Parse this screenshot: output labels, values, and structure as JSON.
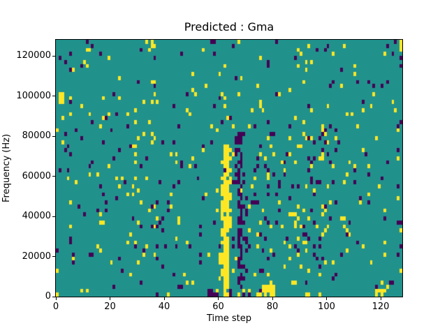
{
  "figure": {
    "background_color": "#ffffff"
  },
  "chart_data": {
    "type": "heatmap",
    "title": "Predicted : Gma",
    "xlabel": "Time step",
    "ylabel": "Frequency (Hz)",
    "x_range": [
      0,
      128
    ],
    "y_range": [
      0,
      128000
    ],
    "x_ticks": [
      0,
      20,
      40,
      60,
      80,
      100,
      120
    ],
    "y_ticks": [
      0,
      20000,
      40000,
      60000,
      80000,
      100000,
      120000
    ],
    "grid": {
      "cols": 128,
      "rows": 64
    },
    "legend": "none",
    "colormap": {
      "name": "viridis-3-level",
      "low": "#440154",
      "mid": "#21918c",
      "high": "#fde725"
    },
    "background_value": "mid",
    "noise": {
      "seed": 7,
      "p_high": 0.028,
      "p_low": 0.026
    },
    "features": [
      {
        "label": "yellow-event-stripe-core",
        "color": "high",
        "cols": [
          62,
          63
        ],
        "rows": [
          2,
          37
        ],
        "density": 0.88
      },
      {
        "label": "yellow-event-stripe-left",
        "color": "high",
        "cols": [
          61,
          61
        ],
        "rows": [
          4,
          33
        ],
        "density": 0.55
      },
      {
        "label": "yellow-event-stripe-right",
        "color": "high",
        "cols": [
          64,
          64
        ],
        "rows": [
          16,
          36
        ],
        "density": 0.45
      },
      {
        "label": "yellow-event-stripe-foot",
        "color": "high",
        "cols": [
          60,
          60
        ],
        "rows": [
          2,
          12
        ],
        "density": 0.35
      },
      {
        "label": "purple-event-stripe-core",
        "color": "low",
        "cols": [
          67,
          68
        ],
        "rows": [
          2,
          40
        ],
        "density": 0.62
      },
      {
        "label": "purple-event-stripe-right",
        "color": "low",
        "cols": [
          69,
          70
        ],
        "rows": [
          5,
          30
        ],
        "density": 0.25
      },
      {
        "label": "purple-event-stripe-top",
        "color": "low",
        "cols": [
          66,
          66
        ],
        "rows": [
          28,
          40
        ],
        "density": 0.45
      },
      {
        "label": "bottom-band-yellow",
        "color": "high",
        "cols": [
          56,
          79
        ],
        "rows": [
          0,
          1
        ],
        "density": 0.3
      },
      {
        "label": "bottom-band-purple",
        "color": "low",
        "cols": [
          56,
          79
        ],
        "rows": [
          0,
          1
        ],
        "density": 0.3
      },
      {
        "label": "bottom-yellow-patch",
        "color": "high",
        "cols": [
          76,
          80
        ],
        "rows": [
          0,
          2
        ],
        "density": 0.7
      },
      {
        "label": "right-mid-purple-speckle",
        "color": "low",
        "cols": [
          71,
          100
        ],
        "rows": [
          4,
          42
        ],
        "density": 0.045
      },
      {
        "label": "right-mid-yellow-speckle",
        "color": "high",
        "cols": [
          71,
          100
        ],
        "rows": [
          4,
          42
        ],
        "density": 0.04
      },
      {
        "label": "bottom-right-yellow-patch",
        "color": "high",
        "cols": [
          118,
          121
        ],
        "rows": [
          0,
          1
        ],
        "density": 0.8
      },
      {
        "label": "left-edge-yellow-block",
        "color": "high",
        "cols": [
          1,
          2
        ],
        "rows": [
          48,
          50
        ],
        "density": 1
      },
      {
        "label": "top-right-corner-yellow",
        "color": "high",
        "cols": [
          127,
          127
        ],
        "rows": [
          61,
          63
        ],
        "density": 1
      },
      {
        "label": "top-right-corner-purple",
        "color": "low",
        "cols": [
          127,
          127
        ],
        "rows": [
          57,
          59
        ],
        "density": 0.8
      }
    ]
  }
}
